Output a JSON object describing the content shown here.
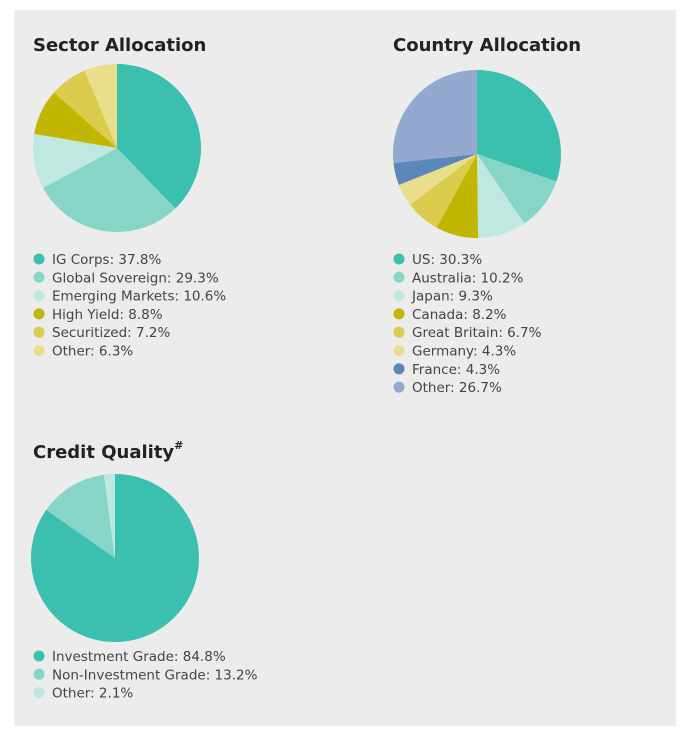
{
  "chart_data": [
    {
      "type": "pie",
      "title": "Sector Allocation",
      "categories": [
        "IG Corps: 37.8%",
        "Global Sovereign: 29.3%",
        "Emerging Markets: 10.6%",
        "High Yield: 8.8%",
        "Securitized: 7.2%",
        "Other: 6.3%"
      ],
      "values": [
        37.8,
        29.3,
        10.6,
        8.8,
        7.2,
        6.3
      ],
      "colors": [
        "#3bbfae",
        "#86d5c7",
        "#bfe9e0",
        "#c2b700",
        "#dacd4e",
        "#e8de8c"
      ]
    },
    {
      "type": "pie",
      "title": "Country Allocation",
      "categories": [
        "US: 30.3%",
        "Australia: 10.2%",
        "Japan: 9.3%",
        "Canada: 8.2%",
        "Great Britain: 6.7%",
        "Germany: 4.3%",
        "France: 4.3%",
        "Other: 26.7%"
      ],
      "values": [
        30.3,
        10.2,
        9.3,
        8.2,
        6.7,
        4.3,
        4.3,
        26.7
      ],
      "colors": [
        "#3bbfae",
        "#86d5c7",
        "#bfe9e0",
        "#c2b700",
        "#dacd4e",
        "#e8de8c",
        "#5b87b9",
        "#93a9d0"
      ]
    },
    {
      "type": "pie",
      "title": "Credit Quality",
      "title_note": "#",
      "categories": [
        "Investment Grade: 84.8%",
        "Non-Investment Grade: 13.2%",
        "Other: 2.1%"
      ],
      "values": [
        84.8,
        13.2,
        2.1
      ],
      "colors": [
        "#3bbfae",
        "#86d5c7",
        "#bfe9e0"
      ]
    }
  ]
}
